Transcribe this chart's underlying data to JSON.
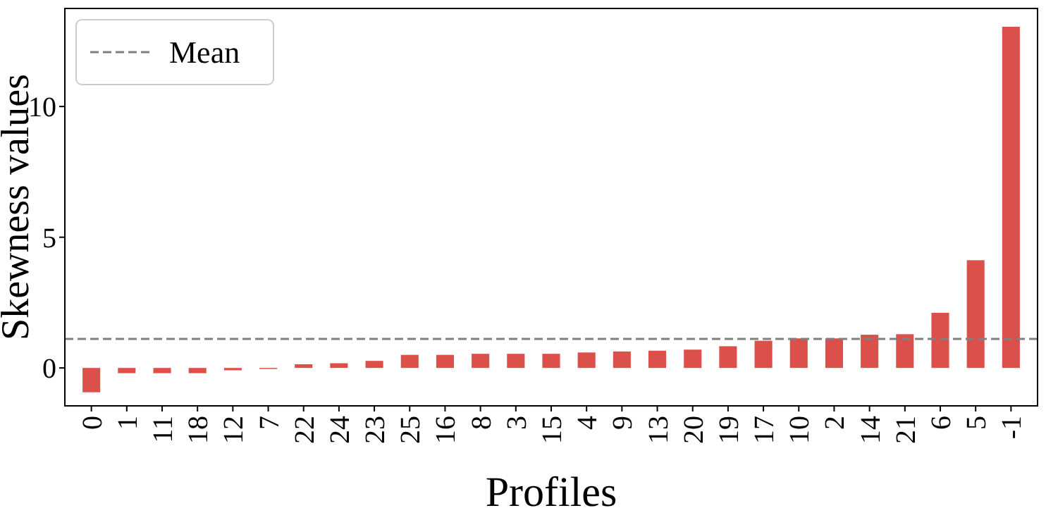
{
  "chart_data": {
    "type": "bar",
    "xlabel": "Profiles",
    "ylabel": "Skewness values",
    "categories": [
      "0",
      "1",
      "11",
      "18",
      "12",
      "7",
      "22",
      "24",
      "23",
      "25",
      "16",
      "8",
      "3",
      "15",
      "4",
      "9",
      "13",
      "20",
      "19",
      "17",
      "10",
      "2",
      "14",
      "21",
      "6",
      "5",
      "-1"
    ],
    "values": [
      -0.93,
      -0.2,
      -0.2,
      -0.2,
      -0.09,
      -0.04,
      0.14,
      0.18,
      0.27,
      0.5,
      0.5,
      0.54,
      0.54,
      0.54,
      0.59,
      0.63,
      0.66,
      0.7,
      0.83,
      1.04,
      1.13,
      1.13,
      1.27,
      1.29,
      2.11,
      4.12,
      13.05
    ],
    "color": "#db504a",
    "ylim": [
      -1.45,
      13.75
    ],
    "yticks": [
      0,
      5,
      10
    ],
    "ref_lines": [
      {
        "axis": "y",
        "value": 1.11,
        "label": "Mean",
        "color": "#808080",
        "line_style": "dashed"
      }
    ],
    "legend": "top left",
    "grid": false
  }
}
